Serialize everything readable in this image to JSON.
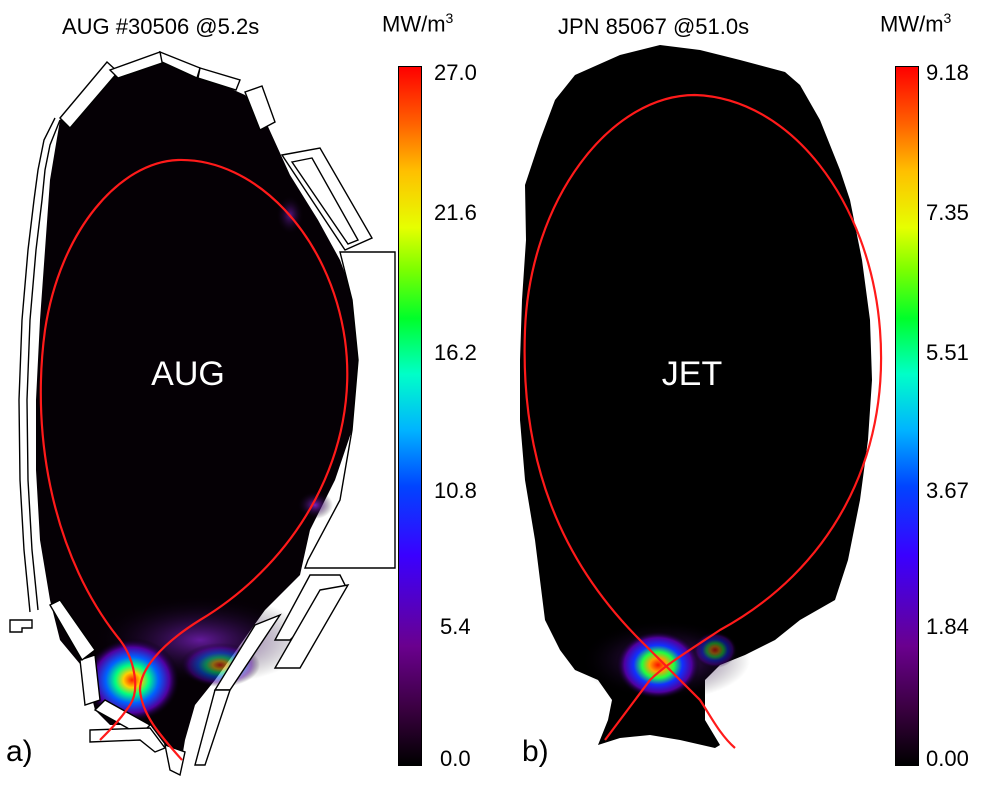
{
  "panels": [
    {
      "title": "AUG #30506 @5.2s",
      "device": "AUG",
      "label": "a)",
      "unit_base": "MW/m",
      "unit_exp": "3",
      "colorbar_ticks": [
        "27.0",
        "21.6",
        "16.2",
        "10.8",
        "5.4",
        "0.0"
      ]
    },
    {
      "title": "JPN 85067 @51.0s",
      "device": "JET",
      "label": "b)",
      "unit_base": "MW/m",
      "unit_exp": "3",
      "colorbar_ticks": [
        "9.18",
        "7.35",
        "5.51",
        "3.67",
        "1.84",
        "0.00"
      ]
    }
  ],
  "colors": {
    "separatrix": "#ff1a1a",
    "plasma_background": "#000000",
    "wall_outline": "#000000"
  }
}
